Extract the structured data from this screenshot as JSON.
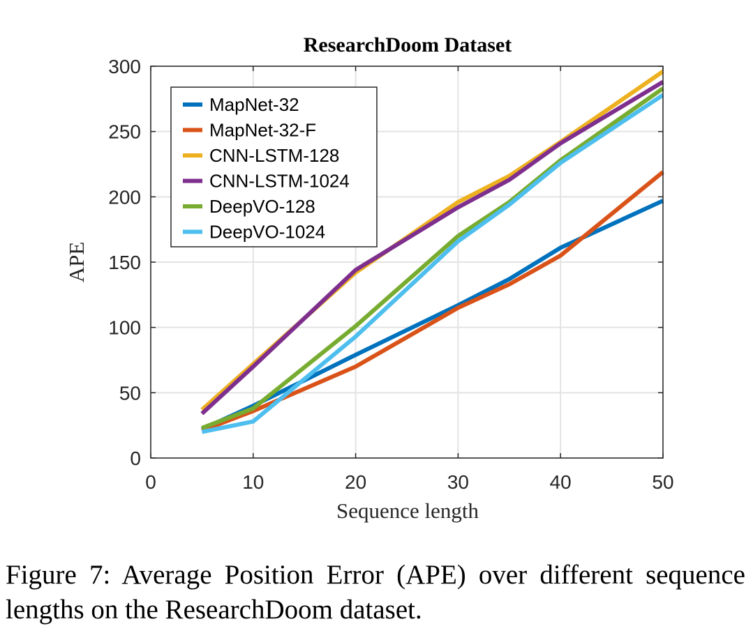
{
  "chart_data": {
    "type": "line",
    "title": "ResearchDoom Dataset",
    "xlabel": "Sequence length",
    "ylabel": "APE",
    "xlim": [
      0,
      50
    ],
    "ylim": [
      0,
      300
    ],
    "xticks": [
      0,
      10,
      20,
      30,
      40,
      50
    ],
    "yticks": [
      0,
      50,
      100,
      150,
      200,
      250,
      300
    ],
    "grid": true,
    "legend_position": "top-left",
    "x": [
      5,
      10,
      20,
      30,
      35,
      40,
      50
    ],
    "series": [
      {
        "name": "MapNet-32",
        "color": "#0072bd",
        "values": [
          22,
          40,
          79,
          117,
          137,
          161,
          197
        ]
      },
      {
        "name": "MapNet-32-F",
        "color": "#d95319",
        "values": [
          21,
          36,
          70,
          115,
          133,
          155,
          219
        ]
      },
      {
        "name": "CNN-LSTM-128",
        "color": "#edb120",
        "values": [
          37,
          72,
          142,
          196,
          216,
          242,
          296
        ]
      },
      {
        "name": "CNN-LSTM-1024",
        "color": "#7e2f8e",
        "values": [
          34,
          70,
          144,
          192,
          213,
          241,
          288
        ]
      },
      {
        "name": "DeepVO-128",
        "color": "#77ac30",
        "values": [
          23,
          38,
          101,
          170,
          196,
          228,
          283
        ]
      },
      {
        "name": "DeepVO-1024",
        "color": "#4dbeee",
        "values": [
          20,
          28,
          93,
          166,
          194,
          226,
          278
        ]
      }
    ]
  },
  "caption": "Figure 7:  Average Position Error (APE) over different sequence lengths on the ResearchDoom dataset."
}
